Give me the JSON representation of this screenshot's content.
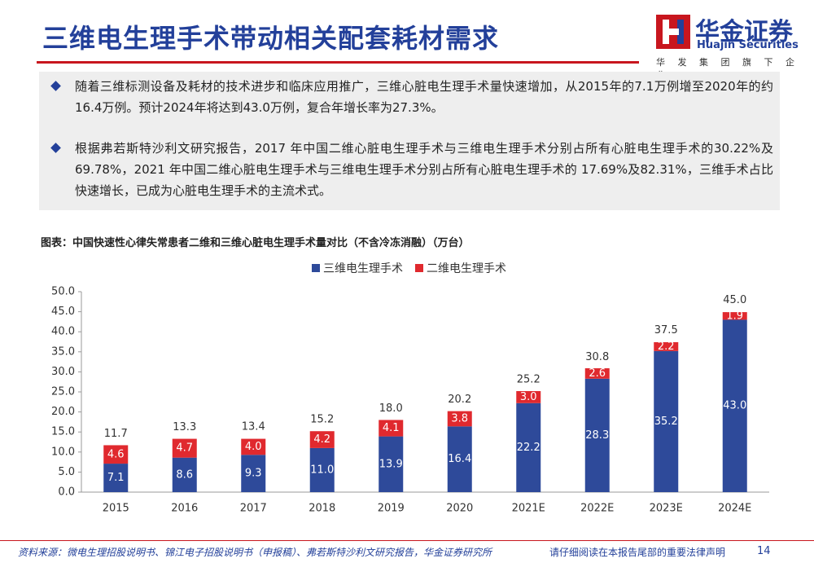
{
  "header": {
    "title": "三维电生理手术带动相关配套耗材需求",
    "logo_name": "华金证券",
    "logo_english": "Huajin Securities",
    "logo_tagline": "华 发 集 团 旗 下 企 业"
  },
  "bullets": [
    "随着三维标测设备及耗材的技术进步和临床应用推广，三维心脏电生理手术量快速增加，从2015年的7.1万例增至2020年的约16.4万例。预计2024年将达到43.0万例，复合年增长率为27.3%。",
    "根据弗若斯特沙利文研究报告，2017 年中国二维心脏电生理手术与三维电生理手术分别占所有心脏电生理手术的30.22%及69.78%，2021 年中国二维心脏电生理手术与三维电生理手术分别占所有心脏电生理手术的 17.69%及82.31%，三维手术占比快速增长，已成为心脏电生理手术的主流术式。"
  ],
  "chart_data": {
    "type": "stacked_bar",
    "title": "图表：中国快速性心律失常患者二维和三维心脏电生理手术量对比（不含冷冻消融）（万台）",
    "categories": [
      "2015",
      "2016",
      "2017",
      "2018",
      "2019",
      "2020",
      "2021E",
      "2022E",
      "2023E",
      "2024E"
    ],
    "series": [
      {
        "name": "三维电生理手术",
        "color": "#2e4a9a",
        "values": [
          7.1,
          8.6,
          9.3,
          11.0,
          13.9,
          16.4,
          22.2,
          28.3,
          35.2,
          43.0
        ],
        "value_labels": [
          "7.1",
          "8.6",
          "9.3",
          "11.0",
          "13.9",
          "16.4",
          "22.2",
          "28.3",
          "35.2",
          "43.0"
        ]
      },
      {
        "name": "二维电生理手术",
        "color": "#e0292e",
        "values": [
          4.6,
          4.7,
          4.0,
          4.2,
          4.1,
          3.8,
          3.0,
          2.6,
          2.2,
          1.9
        ],
        "value_labels": [
          "4.6",
          "4.7",
          "4.0",
          "4.2",
          "4.1",
          "3.8",
          "3.0",
          "2.6",
          "2.2",
          "1.9"
        ]
      }
    ],
    "totals": [
      11.7,
      13.3,
      13.4,
      15.2,
      18.0,
      20.2,
      25.2,
      30.8,
      37.5,
      45.0
    ],
    "total_labels": [
      "11.7",
      "13.3",
      "13.4",
      "15.2",
      "18.0",
      "20.2",
      "25.2",
      "30.8",
      "37.5",
      "45.0"
    ],
    "ylim": [
      0,
      50
    ],
    "yticks": [
      {
        "value": 0,
        "label": "0.0"
      },
      {
        "value": 5,
        "label": "5.0"
      },
      {
        "value": 10,
        "label": "10.0"
      },
      {
        "value": 15,
        "label": "15.0"
      },
      {
        "value": 20,
        "label": "20.0"
      },
      {
        "value": 25,
        "label": "25.0"
      },
      {
        "value": 30,
        "label": "30.0"
      },
      {
        "value": 35,
        "label": "35.0"
      },
      {
        "value": 40,
        "label": "40.0"
      },
      {
        "value": 45,
        "label": "45.0"
      },
      {
        "value": 50,
        "label": "50.0"
      }
    ],
    "legend": "top"
  },
  "footer": {
    "source": "资料来源：微电生理招股说明书、锦江电子招股说明书（申报稿）、弗若斯特沙利文研究报告，华金证券研究所",
    "notice": "请仔细阅读在本报告尾部的重要法律声明",
    "page": "14"
  }
}
